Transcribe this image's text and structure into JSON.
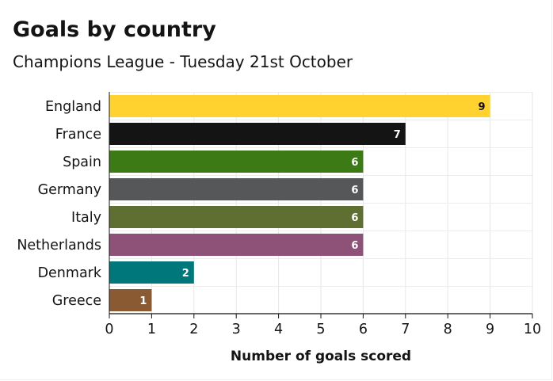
{
  "title": "Goals by country",
  "subtitle": "Champions League - Tuesday 21st October",
  "chart_data": {
    "type": "bar",
    "orientation": "horizontal",
    "categories": [
      "England",
      "France",
      "Spain",
      "Germany",
      "Italy",
      "Netherlands",
      "Denmark",
      "Greece"
    ],
    "values": [
      9,
      7,
      6,
      6,
      6,
      6,
      2,
      1
    ],
    "colors": [
      "#FFD230",
      "#141414",
      "#3B7A14",
      "#555759",
      "#5F6F31",
      "#8E5279",
      "#00777A",
      "#8A5A32"
    ],
    "label_colors": [
      "#141414",
      "#ffffff",
      "#ffffff",
      "#ffffff",
      "#ffffff",
      "#ffffff",
      "#ffffff",
      "#ffffff"
    ],
    "xlabel": "Number of goals scored",
    "ylabel": "",
    "xlim": [
      0,
      10
    ],
    "xticks": [
      0,
      1,
      2,
      3,
      4,
      5,
      6,
      7,
      8,
      9,
      10
    ],
    "grid": true,
    "data_labels": true
  }
}
